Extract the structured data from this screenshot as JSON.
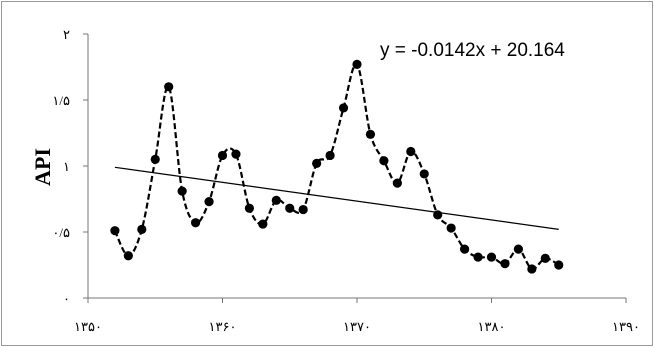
{
  "chart_data": {
    "type": "line",
    "title": "",
    "ylabel": "API",
    "xlabel": "",
    "xlim": [
      1350,
      1390
    ],
    "ylim": [
      0,
      2
    ],
    "grid": false,
    "x_ticks": [
      {
        "value": 1350,
        "label": "۱۳۵۰"
      },
      {
        "value": 1360,
        "label": "۱۳۶۰"
      },
      {
        "value": 1370,
        "label": "۱۳۷۰"
      },
      {
        "value": 1380,
        "label": "۱۳۸۰"
      },
      {
        "value": 1390,
        "label": "۱۳۹۰"
      }
    ],
    "y_ticks": [
      {
        "value": 0,
        "label": "۰"
      },
      {
        "value": 0.5,
        "label": "۰/۵"
      },
      {
        "value": 1,
        "label": "۱"
      },
      {
        "value": 1.5,
        "label": "۱/۵"
      },
      {
        "value": 2,
        "label": "۲"
      }
    ],
    "series": [
      {
        "style": "dashed-line-with-markers",
        "color": "#000000",
        "x": [
          1352,
          1353,
          1354,
          1355,
          1356,
          1357,
          1358,
          1359,
          1360,
          1361,
          1362,
          1363,
          1364,
          1365,
          1366,
          1367,
          1368,
          1369,
          1370,
          1371,
          1372,
          1373,
          1374,
          1375,
          1376,
          1377,
          1378,
          1379,
          1380,
          1381,
          1382,
          1383,
          1384,
          1385
        ],
        "y": [
          0.51,
          0.32,
          0.52,
          1.05,
          1.6,
          0.81,
          0.57,
          0.73,
          1.08,
          1.09,
          0.68,
          0.56,
          0.74,
          0.68,
          0.67,
          1.02,
          1.08,
          1.44,
          1.77,
          1.24,
          1.04,
          0.87,
          1.11,
          0.94,
          0.63,
          0.53,
          0.37,
          0.31,
          0.31,
          0.26,
          0.37,
          0.22,
          0.3,
          0.25
        ]
      }
    ],
    "trendline": {
      "x_start": 1352,
      "x_end": 1385,
      "y_start": 0.99,
      "y_end": 0.52,
      "color": "#000000",
      "equation": "y = -0.0142x + 20.164"
    }
  }
}
